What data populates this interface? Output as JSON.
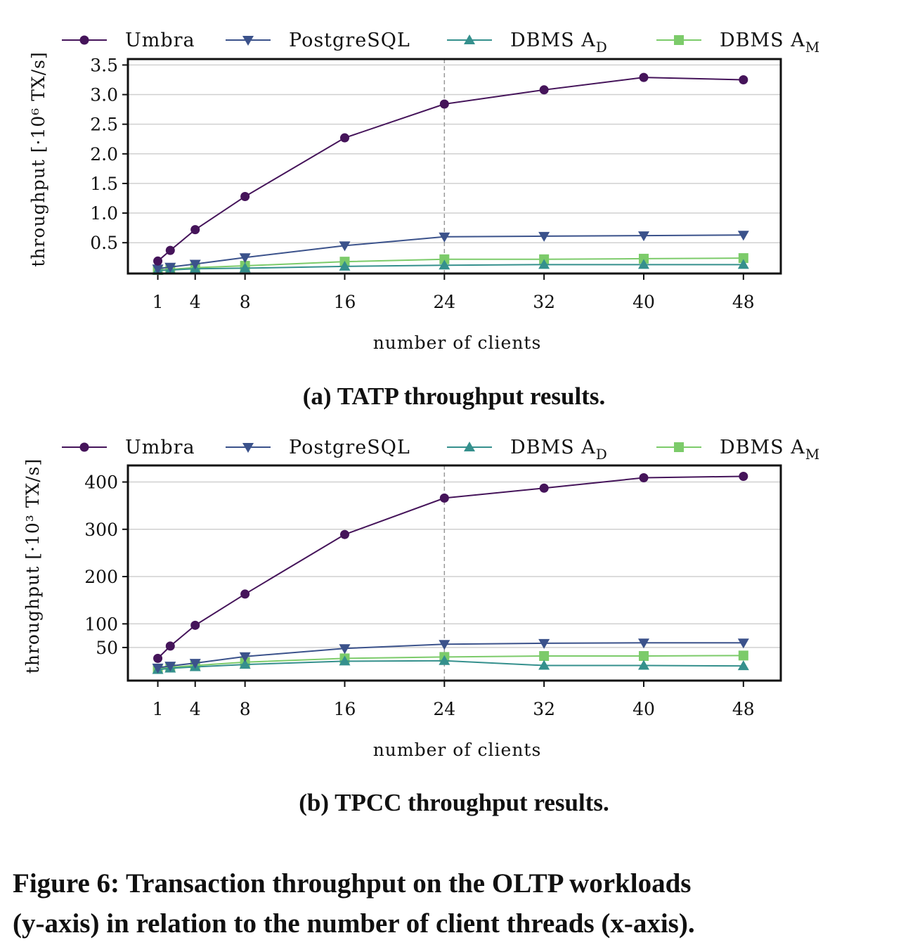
{
  "chart_data": [
    {
      "type": "line",
      "caption": "(a) TATP throughput results.",
      "xlabel": "number of clients",
      "ylabel": "throughput [·10⁶ TX/s]",
      "x_ticks": [
        "1",
        "4",
        "8",
        "16",
        "24",
        "32",
        "40",
        "48"
      ],
      "y_ticks": [
        "0.5",
        "1.0",
        "1.5",
        "2.0",
        "2.5",
        "3.0",
        "3.5"
      ],
      "xlim": [
        -1.4,
        51
      ],
      "ylim": [
        -0.02,
        3.6
      ],
      "grid": true,
      "vline_x": 24,
      "legend": "top",
      "x": [
        1,
        2,
        4,
        8,
        16,
        24,
        32,
        40,
        48
      ],
      "series": [
        {
          "name": "Umbra",
          "color": "#45145a",
          "marker": "circle",
          "values": [
            0.19,
            0.37,
            0.72,
            1.28,
            2.27,
            2.84,
            3.08,
            3.29,
            3.25
          ]
        },
        {
          "name": "PostgreSQL",
          "color": "#3b528b",
          "marker": "triangle-down",
          "values": [
            0.06,
            0.09,
            0.14,
            0.25,
            0.45,
            0.6,
            0.61,
            0.62,
            0.63
          ]
        },
        {
          "name": "DBMS A_D",
          "color": "#35908d",
          "marker": "triangle-up",
          "values": [
            0.03,
            0.04,
            0.06,
            0.07,
            0.1,
            0.12,
            0.13,
            0.13,
            0.13
          ]
        },
        {
          "name": "DBMS A_M",
          "color": "#7ccb6a",
          "marker": "square",
          "values": [
            0.04,
            0.05,
            0.08,
            0.11,
            0.18,
            0.22,
            0.22,
            0.23,
            0.24
          ]
        }
      ]
    },
    {
      "type": "line",
      "caption": "(b) TPCC throughput results.",
      "xlabel": "number of clients",
      "ylabel": "throughput [·10³ TX/s]",
      "x_ticks": [
        "1",
        "4",
        "8",
        "16",
        "24",
        "32",
        "40",
        "48"
      ],
      "y_ticks": [
        "50",
        "100",
        "200",
        "300",
        "400"
      ],
      "xlim": [
        -1.4,
        51
      ],
      "ylim": [
        -20,
        435
      ],
      "grid": true,
      "vline_x": 24,
      "legend": "top",
      "x": [
        1,
        2,
        4,
        8,
        16,
        24,
        32,
        40,
        48
      ],
      "series": [
        {
          "name": "Umbra",
          "color": "#45145a",
          "marker": "circle",
          "values": [
            27,
            53,
            97,
            163,
            289,
            366,
            387,
            409,
            412
          ]
        },
        {
          "name": "PostgreSQL",
          "color": "#3b528b",
          "marker": "triangle-down",
          "values": [
            7,
            11,
            17,
            31,
            48,
            57,
            59,
            60,
            60
          ]
        },
        {
          "name": "DBMS A_D",
          "color": "#35908d",
          "marker": "triangle-up",
          "values": [
            3,
            6,
            9,
            14,
            21,
            22,
            12,
            12,
            11
          ]
        },
        {
          "name": "DBMS A_M",
          "color": "#7ccb6a",
          "marker": "square",
          "values": [
            5,
            8,
            12,
            19,
            27,
            30,
            32,
            32,
            33
          ]
        }
      ]
    }
  ],
  "legend_labels": [
    {
      "base": "Umbra",
      "sub": ""
    },
    {
      "base": "PostgreSQL",
      "sub": ""
    },
    {
      "base": "DBMS A",
      "sub": "D"
    },
    {
      "base": "DBMS A",
      "sub": "M"
    }
  ],
  "figure_caption": {
    "line1": "Figure 6: Transaction throughput on the OLTP workloads",
    "line2": "(y-axis) in relation to the number of client threads (x-axis)."
  }
}
